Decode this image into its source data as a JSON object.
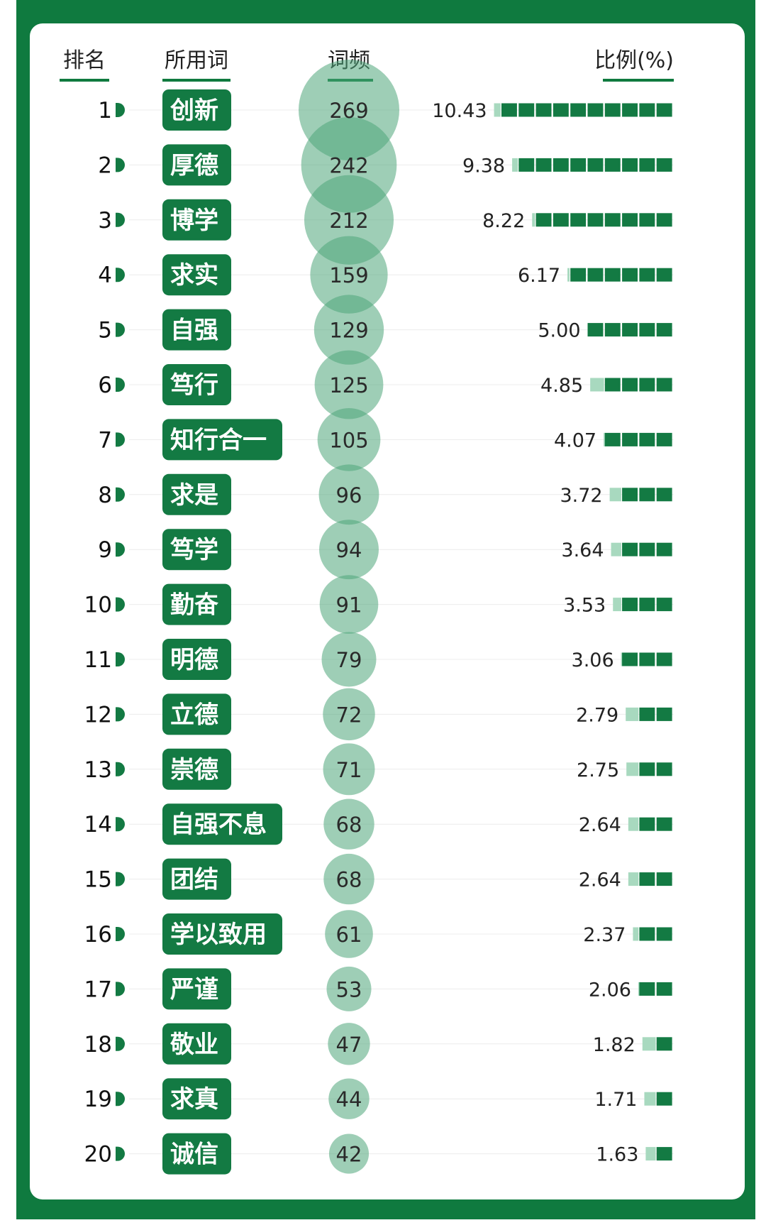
{
  "headers": {
    "rank": "排名",
    "word": "所用词",
    "freq": "词频",
    "ratio": "比例(%)"
  },
  "colors": {
    "frame": "#0f7a3f",
    "tag": "#137a43",
    "bubble": "#4fa67a",
    "bar": "#137a43",
    "bar_light": "#a8d9bf"
  },
  "chart_data": {
    "type": "table",
    "columns": [
      "排名",
      "所用词",
      "词频",
      "比例(%)"
    ],
    "rows": [
      {
        "rank": "1",
        "word": "创新",
        "freq": 269,
        "ratio": "10.43"
      },
      {
        "rank": "2",
        "word": "厚德",
        "freq": 242,
        "ratio": "9.38"
      },
      {
        "rank": "3",
        "word": "博学",
        "freq": 212,
        "ratio": "8.22"
      },
      {
        "rank": "4",
        "word": "求实",
        "freq": 159,
        "ratio": "6.17"
      },
      {
        "rank": "5",
        "word": "自强",
        "freq": 129,
        "ratio": "5.00"
      },
      {
        "rank": "6",
        "word": "笃行",
        "freq": 125,
        "ratio": "4.85"
      },
      {
        "rank": "7",
        "word": "知行合一",
        "freq": 105,
        "ratio": "4.07"
      },
      {
        "rank": "8",
        "word": "求是",
        "freq": 96,
        "ratio": "3.72"
      },
      {
        "rank": "9",
        "word": "笃学",
        "freq": 94,
        "ratio": "3.64"
      },
      {
        "rank": "10",
        "word": "勤奋",
        "freq": 91,
        "ratio": "3.53"
      },
      {
        "rank": "11",
        "word": "明德",
        "freq": 79,
        "ratio": "3.06"
      },
      {
        "rank": "12",
        "word": "立德",
        "freq": 72,
        "ratio": "2.79"
      },
      {
        "rank": "13",
        "word": "崇德",
        "freq": 71,
        "ratio": "2.75"
      },
      {
        "rank": "14",
        "word": "自强不息",
        "freq": 68,
        "ratio": "2.64"
      },
      {
        "rank": "15",
        "word": "团结",
        "freq": 68,
        "ratio": "2.64"
      },
      {
        "rank": "16",
        "word": "学以致用",
        "freq": 61,
        "ratio": "2.37"
      },
      {
        "rank": "17",
        "word": "严谨",
        "freq": 53,
        "ratio": "2.06"
      },
      {
        "rank": "18",
        "word": "敬业",
        "freq": 47,
        "ratio": "1.82"
      },
      {
        "rank": "19",
        "word": "求真",
        "freq": 44,
        "ratio": "1.71"
      },
      {
        "rank": "20",
        "word": "诚信",
        "freq": 42,
        "ratio": "1.63"
      }
    ]
  }
}
